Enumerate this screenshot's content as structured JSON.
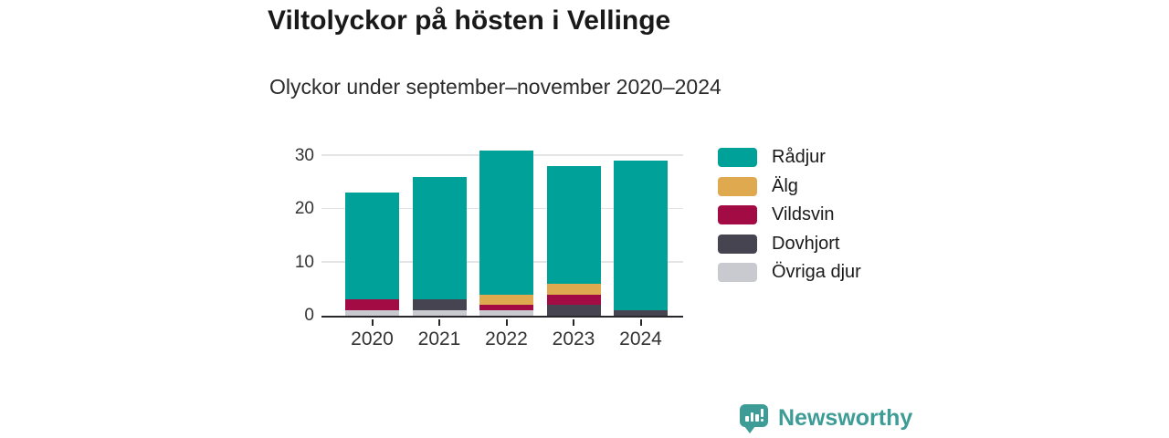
{
  "header": {
    "title": "Viltolyckor på hösten i Vellinge",
    "subtitle": "Olyckor under september–november 2020–2024"
  },
  "chart_data": {
    "type": "bar",
    "stacked": true,
    "title": "Viltolyckor på hösten i Vellinge",
    "subtitle": "Olyckor under september–november 2020–2024",
    "categories": [
      "2020",
      "2021",
      "2022",
      "2023",
      "2024"
    ],
    "series": [
      {
        "name": "Rådjur",
        "color": "#00a199",
        "values": [
          20,
          23,
          27,
          22,
          28
        ]
      },
      {
        "name": "Älg",
        "color": "#dfa94f",
        "values": [
          0,
          0,
          2,
          2,
          0
        ]
      },
      {
        "name": "Vildsvin",
        "color": "#a30b45",
        "values": [
          2,
          0,
          1,
          2,
          0
        ]
      },
      {
        "name": "Dovhjort",
        "color": "#454450",
        "values": [
          0,
          2,
          0,
          2,
          1
        ]
      },
      {
        "name": "Övriga djur",
        "color": "#c9c9d0",
        "values": [
          1,
          1,
          1,
          0,
          0
        ]
      }
    ],
    "stack_order_bottom_to_top": [
      "Övriga djur",
      "Dovhjort",
      "Vildsvin",
      "Älg",
      "Rådjur"
    ],
    "totals": [
      23,
      26,
      31,
      28,
      29
    ],
    "xlabel": "",
    "ylabel": "",
    "y_ticks": [
      0,
      10,
      20,
      30
    ],
    "ylim": [
      0,
      33.5
    ],
    "grid": "horizontal",
    "legend_position": "right"
  },
  "colors": {
    "axis": "#26262b",
    "gridline": "#e4e4e6",
    "tick_text": "#333333",
    "brand_teal": "#3e9c96"
  },
  "footer": {
    "brand": "Newsworthy"
  }
}
